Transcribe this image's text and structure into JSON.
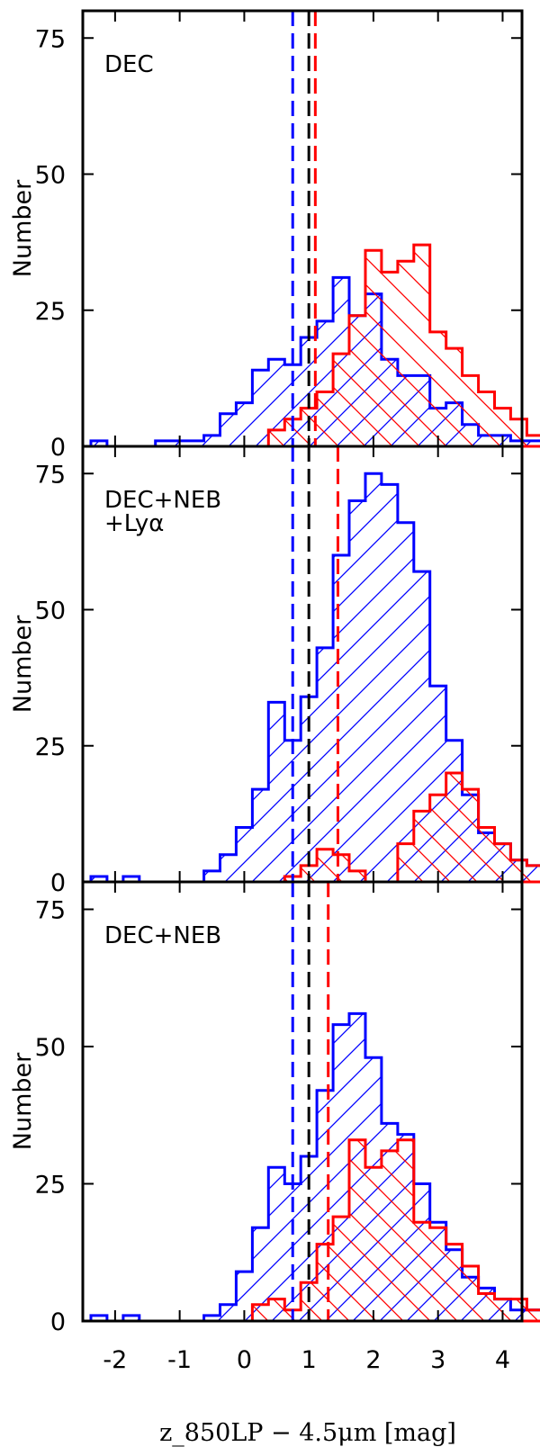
{
  "figure": {
    "xlabel": "z_850LP − 4.5μm [mag]"
  },
  "colors": {
    "blue": "#0000ff",
    "red": "#ff0000",
    "black": "#000000"
  },
  "chart_data": [
    {
      "type": "histogram",
      "label": "DEC",
      "ylabel": "Number",
      "xlim": [
        -2.5,
        4.3
      ],
      "ylim": [
        0,
        80
      ],
      "xticks": [
        -2,
        -1,
        0,
        1,
        2,
        3,
        4
      ],
      "yticks": [
        0,
        25,
        50,
        75
      ],
      "bin_width": 0.25,
      "bin_start": -2.375,
      "series": [
        {
          "name": "",
          "color": "#0000ff",
          "values": [
            1,
            0,
            0,
            0,
            1,
            1,
            1,
            2,
            6,
            8,
            14,
            16,
            15,
            20,
            23,
            31,
            24,
            28,
            16,
            13,
            13,
            7,
            8,
            4,
            2,
            2,
            1,
            1,
            2,
            1,
            0,
            0,
            0,
            0,
            0,
            1
          ]
        },
        {
          "name": "",
          "color": "#ff0000",
          "values": [
            0,
            0,
            0,
            0,
            0,
            0,
            0,
            0,
            0,
            0,
            0,
            3,
            5,
            7,
            10,
            17,
            24,
            36,
            32,
            34,
            37,
            21,
            18,
            13,
            10,
            7,
            5,
            2,
            4,
            6,
            1,
            0,
            2,
            0,
            0,
            0
          ]
        }
      ],
      "vlines": [
        {
          "x": 0.75,
          "color": "#0000ff"
        },
        {
          "x": 1.0,
          "color": "#000000"
        },
        {
          "x": 1.1,
          "color": "#ff0000"
        }
      ]
    },
    {
      "type": "histogram",
      "label": "DEC+NEB +Lyα",
      "ylabel": "Number",
      "xlim": [
        -2.5,
        4.3
      ],
      "ylim": [
        0,
        80
      ],
      "xticks": [
        -2,
        -1,
        0,
        1,
        2,
        3,
        4
      ],
      "yticks": [
        0,
        25,
        50,
        75
      ],
      "bin_width": 0.25,
      "bin_start": -2.375,
      "series": [
        {
          "name": "",
          "color": "#0000ff",
          "values": [
            1,
            0,
            1,
            0,
            0,
            0,
            0,
            2,
            5,
            10,
            17,
            33,
            26,
            34,
            43,
            60,
            70,
            75,
            73,
            66,
            57,
            36,
            26,
            16,
            9,
            7,
            4,
            3,
            1,
            2,
            0,
            0,
            0,
            0,
            0,
            1
          ]
        },
        {
          "name": "",
          "color": "#ff0000",
          "values": [
            0,
            0,
            0,
            0,
            0,
            0,
            0,
            0,
            0,
            0,
            0,
            0,
            1,
            3,
            6,
            5,
            2,
            0,
            0,
            7,
            13,
            16,
            20,
            17,
            10,
            7,
            4,
            3,
            2,
            5,
            0,
            1,
            2,
            0,
            1,
            0
          ]
        }
      ],
      "vlines": [
        {
          "x": 0.75,
          "color": "#0000ff"
        },
        {
          "x": 1.0,
          "color": "#000000"
        },
        {
          "x": 1.45,
          "color": "#ff0000"
        }
      ]
    },
    {
      "type": "histogram",
      "label": "DEC+NEB",
      "ylabel": "Number",
      "xlim": [
        -2.5,
        4.3
      ],
      "ylim": [
        0,
        80
      ],
      "xticks": [
        -2,
        -1,
        0,
        1,
        2,
        3,
        4
      ],
      "yticks": [
        0,
        25,
        50,
        75
      ],
      "bin_width": 0.25,
      "bin_start": -2.375,
      "series": [
        {
          "name": "",
          "color": "#0000ff",
          "values": [
            1,
            0,
            1,
            0,
            0,
            0,
            0,
            1,
            3,
            9,
            17,
            28,
            25,
            30,
            42,
            54,
            56,
            48,
            36,
            34,
            25,
            18,
            13,
            8,
            6,
            4,
            2,
            2,
            1,
            1,
            0,
            0,
            0,
            0,
            0,
            1
          ]
        },
        {
          "name": "",
          "color": "#ff0000",
          "values": [
            0,
            0,
            0,
            0,
            0,
            0,
            0,
            0,
            0,
            0,
            3,
            4,
            2,
            7,
            14,
            19,
            33,
            28,
            31,
            33,
            18,
            17,
            14,
            10,
            5,
            4,
            4,
            2,
            3,
            5,
            1,
            1,
            0,
            0,
            0,
            0
          ]
        }
      ],
      "vlines": [
        {
          "x": 0.75,
          "color": "#0000ff"
        },
        {
          "x": 1.0,
          "color": "#000000"
        },
        {
          "x": 1.3,
          "color": "#ff0000"
        }
      ]
    }
  ]
}
